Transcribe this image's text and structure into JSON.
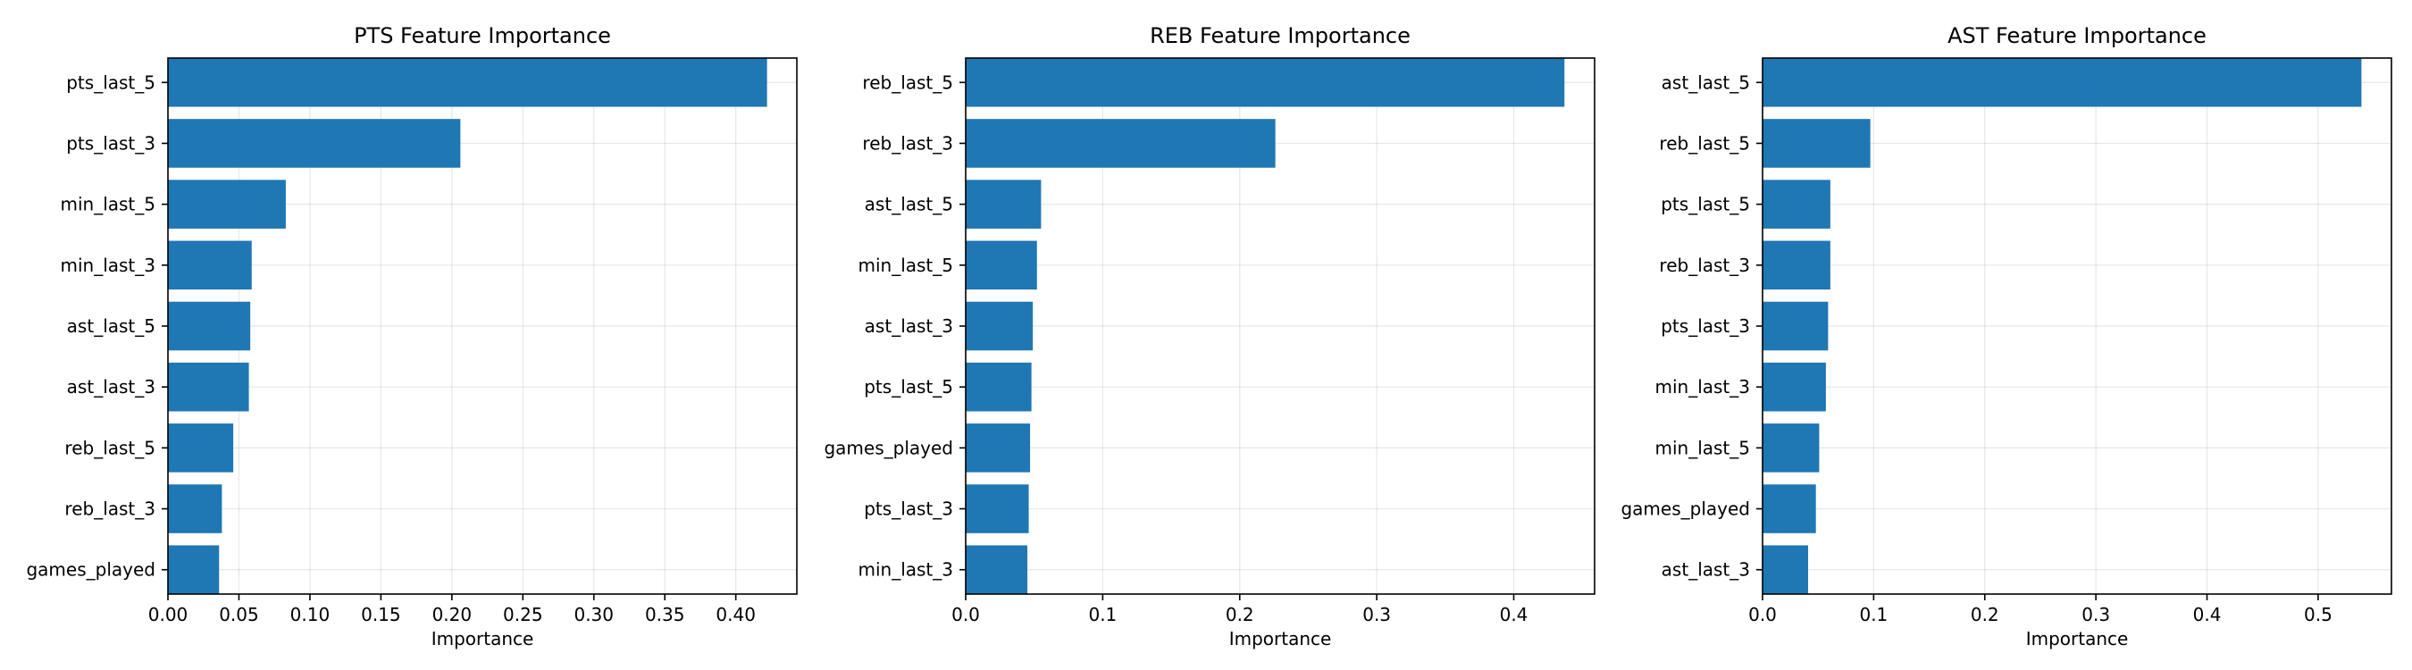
{
  "chart_data": [
    {
      "type": "bar",
      "orientation": "horizontal",
      "title": "PTS Feature Importance",
      "xlabel": "Importance",
      "ylabel": "",
      "categories": [
        "pts_last_5",
        "pts_last_3",
        "min_last_5",
        "min_last_3",
        "ast_last_5",
        "ast_last_3",
        "reb_last_5",
        "reb_last_3",
        "games_played"
      ],
      "values": [
        0.422,
        0.206,
        0.083,
        0.059,
        0.058,
        0.057,
        0.046,
        0.038,
        0.036
      ],
      "xlim": [
        0,
        0.443
      ],
      "xticks": [
        0.0,
        0.05,
        0.1,
        0.15,
        0.2,
        0.25,
        0.3,
        0.35,
        0.4
      ],
      "xtick_labels": [
        "0.00",
        "0.05",
        "0.10",
        "0.15",
        "0.20",
        "0.25",
        "0.30",
        "0.35",
        "0.40"
      ],
      "grid": true,
      "bar_color": "#1f77b4"
    },
    {
      "type": "bar",
      "orientation": "horizontal",
      "title": "REB Feature Importance",
      "xlabel": "Importance",
      "ylabel": "",
      "categories": [
        "reb_last_5",
        "reb_last_3",
        "ast_last_5",
        "min_last_5",
        "ast_last_3",
        "pts_last_5",
        "games_played",
        "pts_last_3",
        "min_last_3"
      ],
      "values": [
        0.437,
        0.226,
        0.055,
        0.052,
        0.049,
        0.048,
        0.047,
        0.046,
        0.045
      ],
      "xlim": [
        0,
        0.459
      ],
      "xticks": [
        0.0,
        0.1,
        0.2,
        0.3,
        0.4
      ],
      "xtick_labels": [
        "0.0",
        "0.1",
        "0.2",
        "0.3",
        "0.4"
      ],
      "grid": true,
      "bar_color": "#1f77b4"
    },
    {
      "type": "bar",
      "orientation": "horizontal",
      "title": "AST Feature Importance",
      "xlabel": "Importance",
      "ylabel": "",
      "categories": [
        "ast_last_5",
        "reb_last_5",
        "pts_last_5",
        "reb_last_3",
        "pts_last_3",
        "min_last_3",
        "min_last_5",
        "games_played",
        "ast_last_3"
      ],
      "values": [
        0.539,
        0.097,
        0.061,
        0.061,
        0.059,
        0.057,
        0.051,
        0.048,
        0.041
      ],
      "xlim": [
        0,
        0.566
      ],
      "xticks": [
        0.0,
        0.1,
        0.2,
        0.3,
        0.4,
        0.5
      ],
      "xtick_labels": [
        "0.0",
        "0.1",
        "0.2",
        "0.3",
        "0.4",
        "0.5"
      ],
      "grid": true,
      "bar_color": "#1f77b4"
    }
  ]
}
